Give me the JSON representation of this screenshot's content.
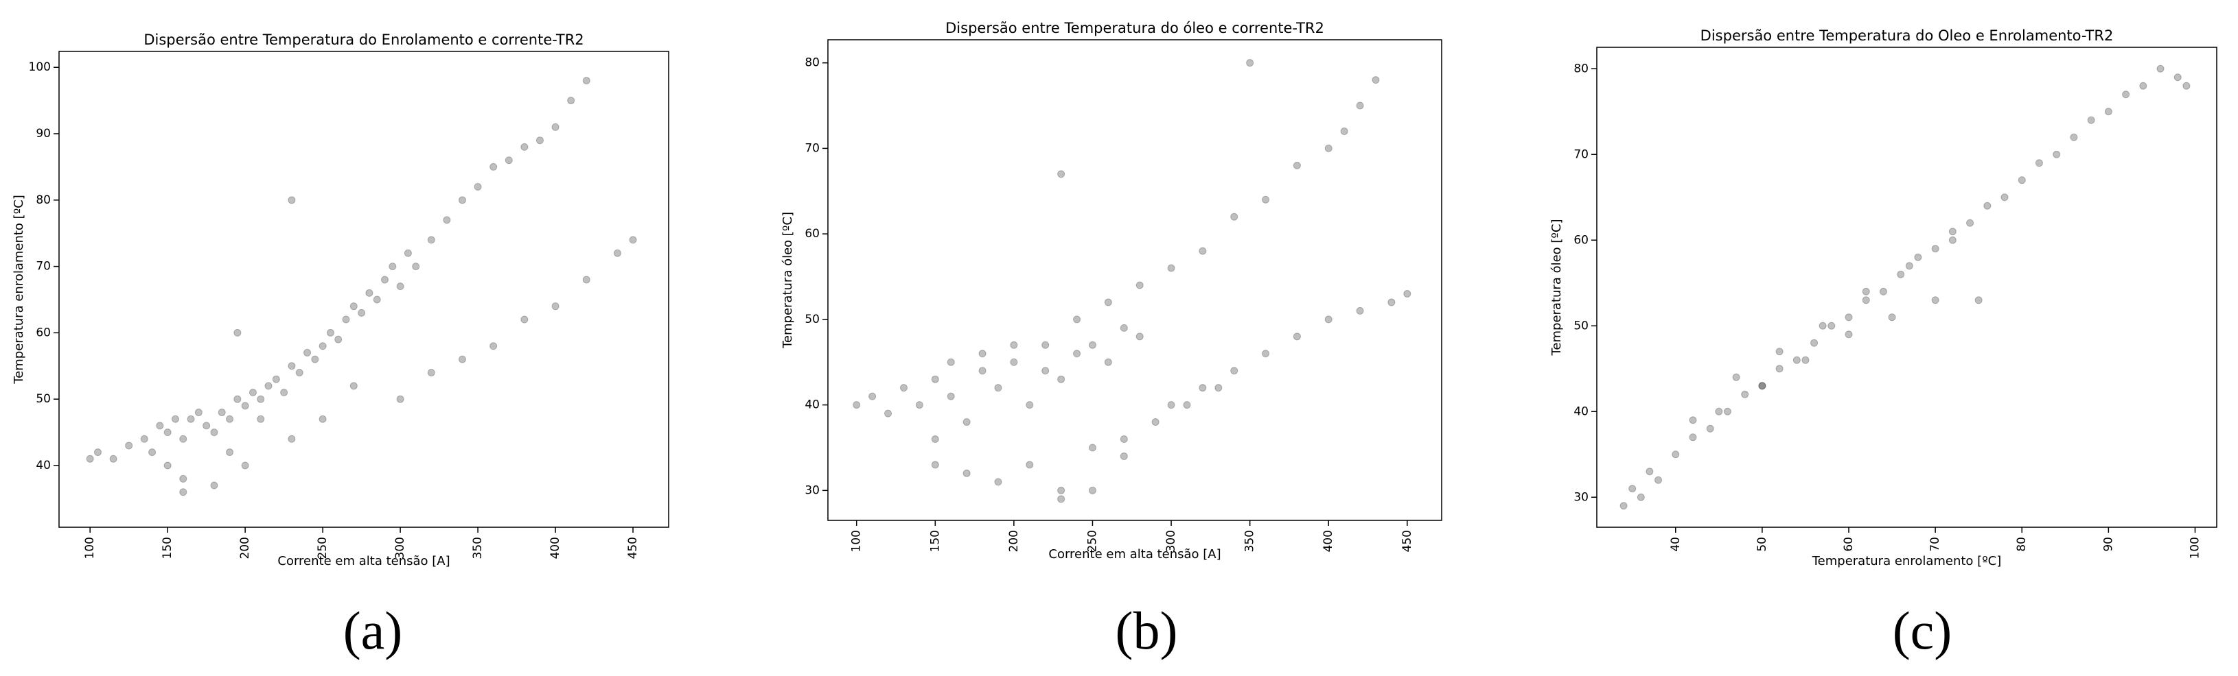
{
  "chart_data": [
    {
      "type": "scatter",
      "title": "Dispersão entre Temperatura do Enrolamento e corrente-TR2",
      "xlabel": "Corrente em alta tensão [A]",
      "ylabel": "Temperatura enrolamento [ºC]",
      "panel_label": "(a)",
      "color": "rgba(0,0,0,0.25)",
      "xlim": [
        80,
        473
      ],
      "ylim": [
        30.7,
        102.4
      ],
      "xticks": [
        100,
        150,
        200,
        250,
        300,
        350,
        400,
        450
      ],
      "yticks": [
        40,
        50,
        60,
        70,
        80,
        90,
        100
      ],
      "x": [
        100,
        105,
        115,
        125,
        135,
        140,
        145,
        150,
        150,
        155,
        160,
        160,
        165,
        170,
        175,
        180,
        185,
        190,
        195,
        200,
        205,
        210,
        215,
        220,
        225,
        230,
        235,
        240,
        245,
        250,
        255,
        260,
        265,
        270,
        275,
        280,
        285,
        290,
        295,
        300,
        305,
        310,
        320,
        330,
        340,
        350,
        360,
        370,
        380,
        390,
        400,
        410,
        420,
        300,
        320,
        340,
        360,
        380,
        400,
        420,
        440,
        450,
        180,
        200,
        230,
        250,
        270,
        160,
        190,
        210,
        230,
        195
      ],
      "values": [
        41,
        42,
        41,
        43,
        44,
        42,
        46,
        45,
        40,
        47,
        44,
        38,
        47,
        48,
        46,
        45,
        48,
        47,
        50,
        49,
        51,
        50,
        52,
        53,
        51,
        55,
        54,
        57,
        56,
        58,
        60,
        59,
        62,
        64,
        63,
        66,
        65,
        68,
        70,
        67,
        72,
        70,
        74,
        77,
        80,
        82,
        85,
        86,
        88,
        89,
        91,
        95,
        98,
        50,
        54,
        56,
        58,
        62,
        64,
        68,
        72,
        74,
        37,
        40,
        44,
        47,
        52,
        36,
        42,
        47,
        80,
        60
      ]
    },
    {
      "type": "scatter",
      "title": "Dispersão entre Temperatura do óleo e corrente-TR2",
      "xlabel": "Corrente em alta tensão [A]",
      "ylabel": "Temperatura óleo [ºC]",
      "panel_label": "(b)",
      "color": "rgba(0,0,0,0.25)",
      "xlim": [
        81.8,
        471.9
      ],
      "ylim": [
        26.5,
        82.7
      ],
      "xticks": [
        100,
        150,
        200,
        250,
        300,
        350,
        400,
        450
      ],
      "yticks": [
        30,
        40,
        50,
        60,
        70,
        80
      ],
      "x": [
        100,
        110,
        120,
        130,
        140,
        150,
        150,
        160,
        170,
        180,
        190,
        200,
        210,
        220,
        230,
        240,
        250,
        260,
        270,
        280,
        150,
        170,
        190,
        210,
        230,
        250,
        270,
        290,
        310,
        330,
        220,
        240,
        260,
        280,
        300,
        320,
        340,
        360,
        380,
        400,
        410,
        420,
        430,
        300,
        320,
        340,
        360,
        380,
        400,
        420,
        440,
        450,
        160,
        180,
        200,
        230,
        250,
        270,
        350,
        230
      ],
      "values": [
        40,
        41,
        39,
        42,
        40,
        43,
        36,
        41,
        38,
        44,
        42,
        45,
        40,
        44,
        43,
        46,
        47,
        45,
        49,
        48,
        33,
        32,
        31,
        33,
        30,
        35,
        36,
        38,
        40,
        42,
        47,
        50,
        52,
        54,
        56,
        58,
        62,
        64,
        68,
        70,
        72,
        75,
        78,
        40,
        42,
        44,
        46,
        48,
        50,
        51,
        52,
        53,
        45,
        46,
        47,
        29,
        30,
        34,
        80,
        67
      ]
    },
    {
      "type": "scatter",
      "title": "Dispersão entre Temperatura do Oleo e Enrolamento-TR2",
      "xlabel": "Temperatura enrolamento [ºC]",
      "ylabel": "Temperatura óleo [ºC]",
      "panel_label": "(c)",
      "color": "rgba(0,0,0,0.25)",
      "xlim": [
        30.9,
        102.5
      ],
      "ylim": [
        26.5,
        82.5
      ],
      "xticks": [
        40,
        50,
        60,
        70,
        80,
        90,
        100
      ],
      "yticks": [
        30,
        40,
        50,
        60,
        70,
        80
      ],
      "x": [
        34,
        35,
        36,
        37,
        38,
        40,
        42,
        44,
        46,
        48,
        50,
        52,
        54,
        56,
        58,
        60,
        62,
        64,
        66,
        68,
        70,
        72,
        74,
        76,
        78,
        80,
        82,
        84,
        86,
        88,
        90,
        92,
        94,
        96,
        98,
        45,
        50,
        55,
        60,
        65,
        70,
        75,
        42,
        47,
        52,
        57,
        62,
        67,
        72,
        99
      ],
      "values": [
        29,
        31,
        30,
        33,
        32,
        35,
        37,
        38,
        40,
        42,
        43,
        45,
        46,
        48,
        50,
        51,
        53,
        54,
        56,
        58,
        59,
        61,
        62,
        64,
        65,
        67,
        69,
        70,
        72,
        74,
        75,
        77,
        78,
        80,
        79,
        40,
        43,
        46,
        49,
        51,
        53,
        53,
        39,
        44,
        47,
        50,
        54,
        57,
        60,
        78
      ]
    }
  ]
}
